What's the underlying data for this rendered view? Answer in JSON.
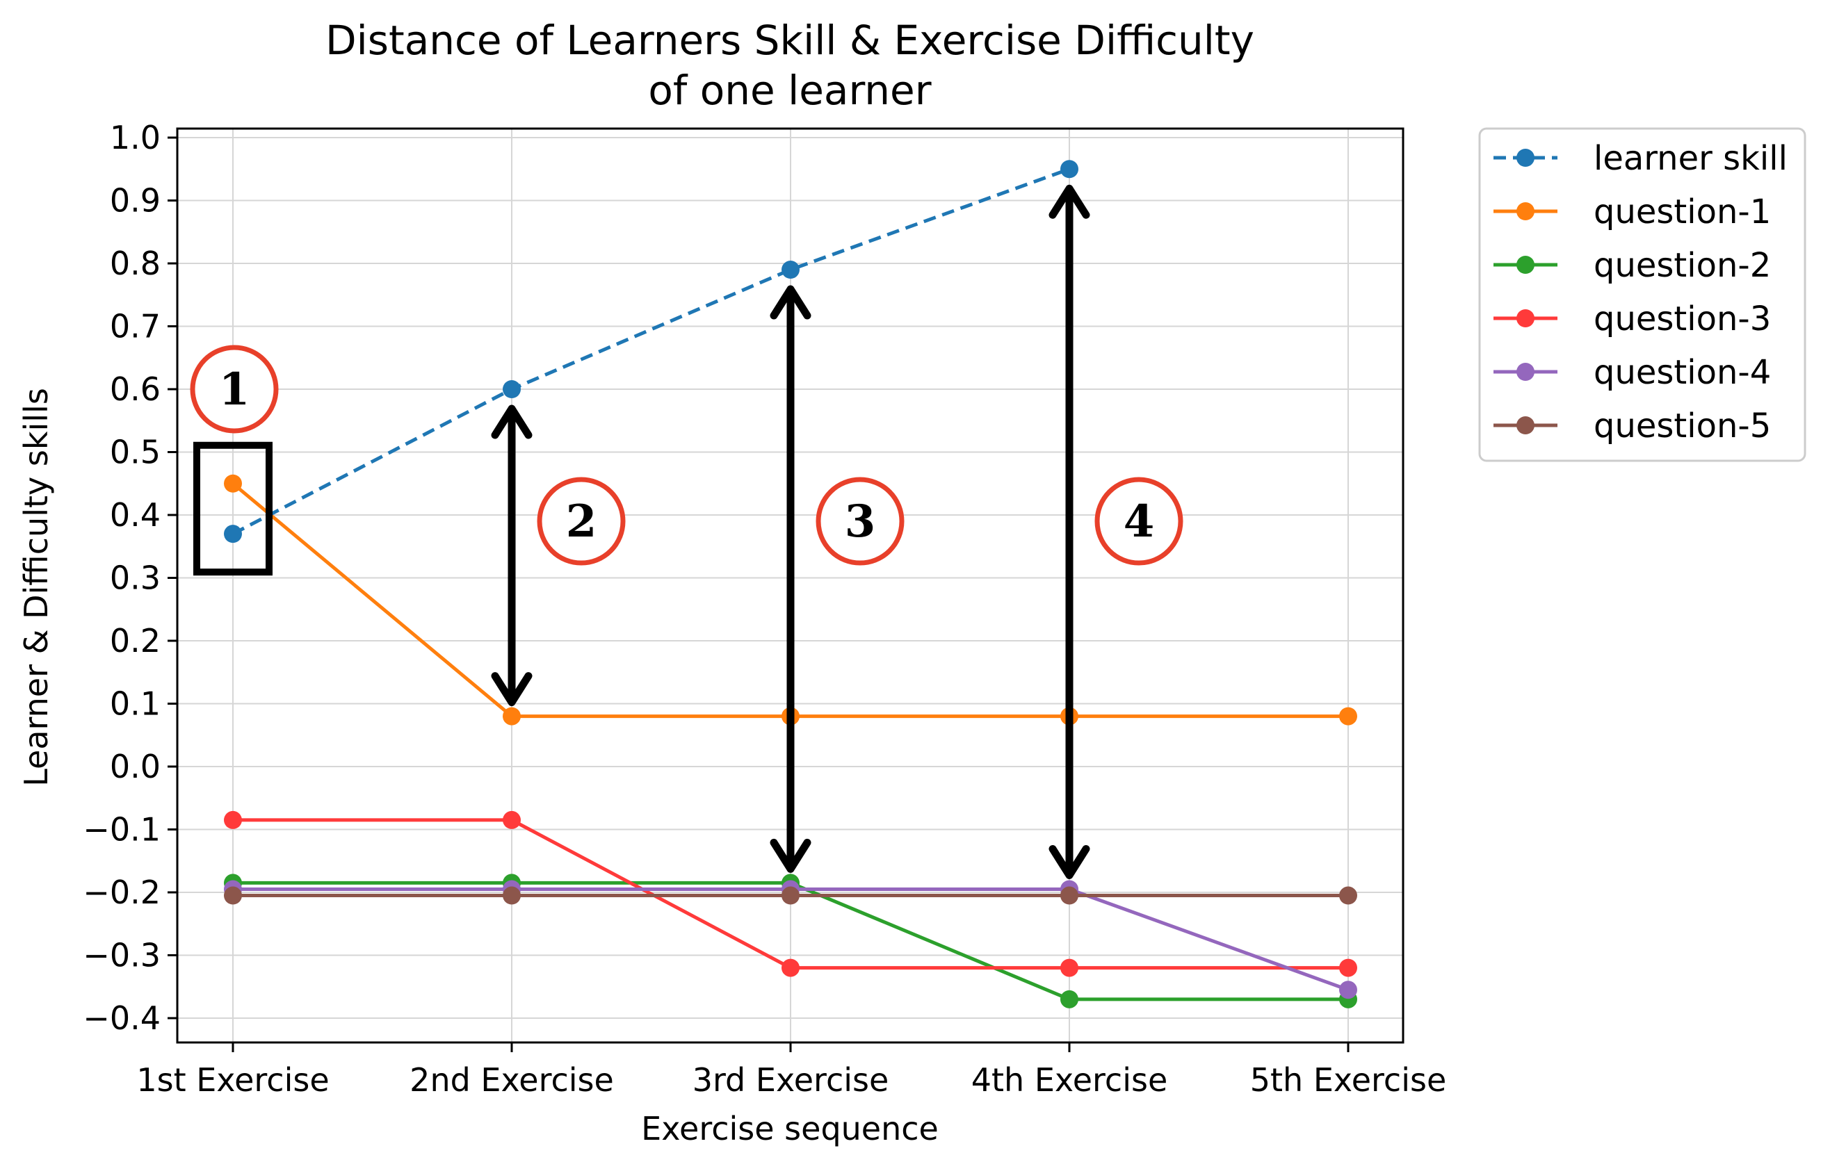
{
  "chart_data": {
    "type": "line",
    "title": "Distance of Learners Skill & Exercise Difficulty",
    "subtitle": "of one learner",
    "xlabel": "Exercise sequence",
    "ylabel": "Learner & Difficulty skills",
    "categories": [
      "1st Exercise",
      "2nd Exercise",
      "3rd Exercise",
      "4th Exercise",
      "5th Exercise"
    ],
    "ylim": [
      -0.43,
      1.02
    ],
    "yticks": [
      1.0,
      0.9,
      0.8,
      0.7,
      0.6,
      0.5,
      0.4,
      0.3,
      0.2,
      0.1,
      0.0,
      -0.1,
      -0.2,
      -0.3,
      -0.4
    ],
    "ytick_labels": [
      "1.0",
      "0.9",
      "0.8",
      "0.7",
      "0.6",
      "0.5",
      "0.4",
      "0.3",
      "0.2",
      "0.1",
      "0.0",
      "−0.1",
      "−0.2",
      "−0.3",
      "−0.4"
    ],
    "grid": true,
    "legend_position": "outside-top-right",
    "series": [
      {
        "name": "learner skill",
        "color": "#1f77b4",
        "style": "dashed",
        "values": [
          0.37,
          0.6,
          0.79,
          0.95,
          null
        ]
      },
      {
        "name": "question-1",
        "color": "#ff7f0e",
        "style": "solid",
        "values": [
          0.45,
          0.08,
          0.08,
          0.08,
          0.08
        ]
      },
      {
        "name": "question-2",
        "color": "#2ca02c",
        "style": "solid",
        "values": [
          -0.185,
          -0.185,
          -0.185,
          -0.37,
          -0.37
        ]
      },
      {
        "name": "question-3",
        "color": "#ff3a3a",
        "style": "solid",
        "values": [
          -0.085,
          -0.085,
          -0.32,
          -0.32,
          -0.32
        ]
      },
      {
        "name": "question-4",
        "color": "#9467bd",
        "style": "solid",
        "values": [
          -0.195,
          -0.195,
          -0.195,
          -0.195,
          -0.355
        ]
      },
      {
        "name": "question-5",
        "color": "#8c564b",
        "style": "solid",
        "values": [
          -0.205,
          -0.205,
          -0.205,
          -0.205,
          -0.205
        ]
      }
    ],
    "annotations": {
      "circle_color": "#e8402a",
      "circles": [
        {
          "label": "1",
          "x_index": 0,
          "y": 0.6
        },
        {
          "label": "2",
          "x_index": 1,
          "y": 0.39
        },
        {
          "label": "3",
          "x_index": 2,
          "y": 0.39
        },
        {
          "label": "4",
          "x_index": 3,
          "y": 0.39
        }
      ],
      "arrows": [
        {
          "x_index": 1,
          "from": 0.08,
          "to": 0.6
        },
        {
          "x_index": 2,
          "from": -0.185,
          "to": 0.79
        },
        {
          "x_index": 3,
          "from": -0.195,
          "to": 0.95
        }
      ],
      "box": {
        "x_index": 0,
        "y_low": 0.37,
        "y_high": 0.45
      }
    }
  }
}
